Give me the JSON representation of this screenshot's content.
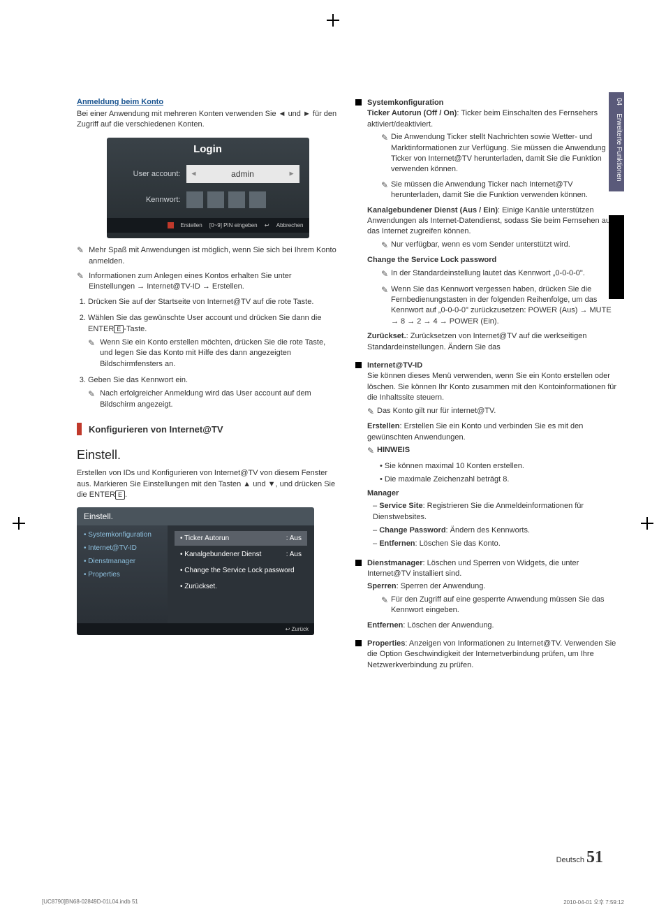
{
  "sideTab": {
    "num": "04",
    "label": "Erweiterte Funktionen"
  },
  "left": {
    "anmeldung": {
      "title": "Anmeldung beim Konto",
      "intro": "Bei einer Anwendung mit mehreren Konten verwenden Sie ◄ und ► für den Zugriff auf die verschiedenen Konten.",
      "login": {
        "header": "Login",
        "userLabel": "User account:",
        "userValue": "admin",
        "passLabel": "Kennwort:",
        "footer": {
          "create": "Erstellen",
          "pin": "[0~9] PIN eingeben",
          "cancel": "Abbrechen"
        }
      },
      "notes": [
        "Mehr Spaß mit Anwendungen ist möglich, wenn Sie sich bei Ihrem Konto anmelden.",
        "Informationen zum Anlegen eines Kontos erhalten Sie unter Einstellungen → Internet@TV-ID → Erstellen."
      ],
      "steps": [
        {
          "text": "Drücken Sie auf der Startseite von Internet@TV auf die rote Taste."
        },
        {
          "text": "Wählen Sie das gewünschte User account und drücken Sie dann die ENTER",
          "sub": "Wenn Sie ein Konto erstellen möchten, drücken Sie die rote Taste, und legen Sie das Konto mit Hilfe des dann angezeigten Bildschirmfensters an."
        },
        {
          "text": "Geben Sie das Kennwort ein.",
          "sub": "Nach erfolgreicher Anmeldung wird das User account auf dem Bildschirm angezeigt."
        }
      ]
    },
    "konfig": {
      "heading": "Konfigurieren von Internet@TV"
    },
    "einstell": {
      "heading": "Einstell.",
      "intro": "Erstellen von IDs und Konfigurieren von Internet@TV von diesem Fenster aus. Markieren Sie Einstellungen mit den Tasten ▲ und ▼, und drücken Sie die ENTER",
      "box": {
        "title": "Einstell.",
        "left": [
          "• Systemkonfiguration",
          "• Internet@TV-ID",
          "• Dienstmanager",
          "• Properties"
        ],
        "right": [
          {
            "label": "• Ticker Autorun",
            "value": ": Aus",
            "hl": true
          },
          {
            "label": "• Kanalgebundener Dienst",
            "value": ": Aus",
            "hl": false
          },
          {
            "label": "• Change the Service Lock password",
            "value": "",
            "hl": false
          },
          {
            "label": "• Zurückset.",
            "value": "",
            "hl": false
          }
        ],
        "footer": "Zurück"
      }
    }
  },
  "right": {
    "syskonfig": {
      "title": "Systemkonfiguration",
      "ticker": {
        "label": "Ticker Autorun (Off / On)",
        "text": ": Ticker beim Einschalten des Fernsehers aktiviert/deaktiviert."
      },
      "tickerNotes": [
        "Die Anwendung Ticker stellt Nachrichten sowie Wetter- und Marktinformationen zur Verfügung. Sie müssen die Anwendung Ticker von Internet@TV herunterladen, damit Sie die Funktion verwenden können.",
        "Sie müssen die Anwendung Ticker nach Internet@TV herunterladen, damit Sie die Funktion verwenden können."
      ],
      "kanal": {
        "label": "Kanalgebundener Dienst (Aus / Ein)",
        "text": ": Einige Kanäle unterstützen Anwendungen als Internet-Datendienst, sodass Sie beim Fernsehen auf das Internet zugreifen können."
      },
      "kanalNote": "Nur verfügbar, wenn es vom Sender unterstützt wird.",
      "changePass": {
        "label": "Change the Service Lock password",
        "notes": [
          "In der Standardeinstellung lautet das Kennwort „0-0-0-0\".",
          "Wenn Sie das Kennwort vergessen haben, drücken Sie die Fernbedienungstasten in der folgenden Reihenfolge, um das Kennwort auf „0-0-0-0\" zurückzusetzen: POWER (Aus) → MUTE → 8 → 2 → 4 → POWER (Ein)."
        ]
      },
      "reset": {
        "label": "Zurückset.",
        "text": ": Zurücksetzen von Internet@TV auf die werkseitigen Standardeinstellungen. Ändern Sie das"
      }
    },
    "internetId": {
      "title": "Internet@TV-ID",
      "intro": "Sie können dieses Menü verwenden, wenn Sie ein Konto erstellen oder löschen. Sie können Ihr Konto zusammen mit den Kontoinformationen für die Inhaltssite steuern.",
      "note": "Das Konto gilt nur für internet@TV.",
      "erstellen": {
        "label": "Erstellen",
        "text": ": Erstellen Sie ein Konto und verbinden Sie es mit den gewünschten Anwendungen."
      },
      "hinweis": {
        "label": "HINWEIS",
        "items": [
          "Sie können maximal 10 Konten erstellen.",
          "Die maximale Zeichenzahl beträgt 8."
        ]
      },
      "manager": {
        "label": "Manager",
        "items": [
          {
            "bold": "Service Site",
            "text": ": Registrieren Sie die Anmeldeinformationen für Dienstwebsites."
          },
          {
            "bold": "Change Password",
            "text": ": Ändern des Kennworts."
          },
          {
            "bold": "Entfernen",
            "text": ": Löschen Sie das Konto."
          }
        ]
      }
    },
    "dienst": {
      "title": "Dienstmanager",
      "text": ": Löschen und Sperren von Widgets, die unter Internet@TV installiert sind.",
      "sperren": {
        "label": "Sperren",
        "text": ": Sperren der Anwendung.",
        "note": "Für den Zugriff auf eine gesperrte Anwendung müssen Sie das Kennwort eingeben."
      },
      "entfernen": {
        "label": "Entfernen",
        "text": ": Löschen der Anwendung."
      }
    },
    "properties": {
      "title": "Properties",
      "text": ": Anzeigen von Informationen zu Internet@TV. Verwenden Sie die Option Geschwindigkeit der Internetverbindung prüfen, um Ihre Netzwerkverbindung zu prüfen."
    }
  },
  "footer": {
    "lang": "Deutsch",
    "page": "51"
  },
  "printFooter": {
    "left": "[UC8790]BN68-02849D-01L04.indb   51",
    "right": "2010-04-01   오후 7:59:12"
  }
}
